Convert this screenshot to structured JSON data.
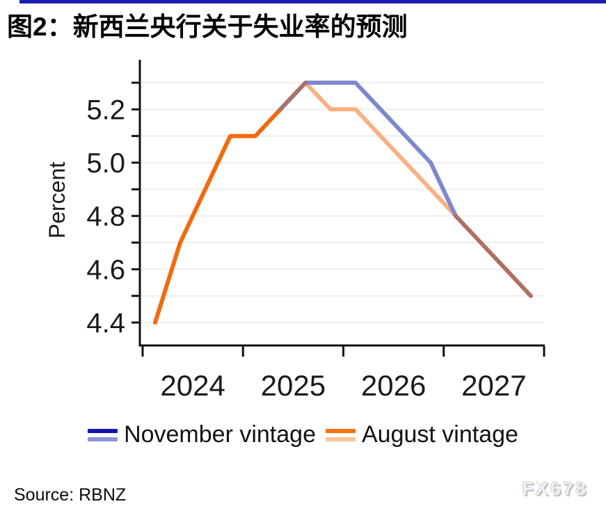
{
  "page": {
    "source": "Source: RBNZ",
    "watermark": "FX678",
    "top_bar_color": "#1e1eb4"
  },
  "chart_data": {
    "type": "line",
    "title": "图2：新西兰央行关于失业率的预测",
    "ylabel": "Percent",
    "ylim": [
      4.35,
      5.38
    ],
    "ytick_labels": [
      "4.4",
      "4.6",
      "4.8",
      "5.0",
      "5.2"
    ],
    "ytick_minor_step": 0.1,
    "ytick_minor_range": [
      4.4,
      5.3
    ],
    "xtick_labels": [
      "2024",
      "2025",
      "2026",
      "2027"
    ],
    "grid": "horizontal-light",
    "legend_position": "bottom",
    "quarters": [
      "2024Q1",
      "2024Q2",
      "2024Q3",
      "2024Q4",
      "2025Q1",
      "2025Q2",
      "2025Q3",
      "2025Q4",
      "2026Q1",
      "2026Q2",
      "2026Q3",
      "2026Q4",
      "2027Q1",
      "2027Q2",
      "2027Q3",
      "2027Q4"
    ],
    "series": [
      {
        "name": "November vintage",
        "color_history": "#1515a8",
        "color_forecast": "#7d88cf",
        "values": [
          null,
          null,
          null,
          null,
          null,
          5.2,
          5.3,
          5.3,
          5.3,
          5.2,
          5.1,
          5.0,
          4.8,
          4.7,
          4.6,
          4.5
        ]
      },
      {
        "name": "August vintage",
        "color_history": "#f26a0e",
        "color_forecast": "#f9b183",
        "values": [
          4.4,
          4.7,
          4.9,
          5.1,
          5.1,
          5.2,
          5.3,
          5.2,
          5.2,
          5.1,
          5.0,
          4.9,
          4.8,
          4.7,
          4.6,
          4.5
        ]
      }
    ],
    "draw_segments": [
      {
        "name": "august-history",
        "color": "#f26a0e",
        "points": [
          [
            0,
            4.4
          ],
          [
            1,
            4.7
          ],
          [
            2,
            4.9
          ],
          [
            3,
            5.1
          ],
          [
            4,
            5.1
          ],
          [
            5,
            5.2
          ]
        ]
      },
      {
        "name": "august-forecast",
        "color": "#f9b183",
        "points": [
          [
            6,
            5.3
          ],
          [
            7,
            5.2
          ],
          [
            8,
            5.2
          ],
          [
            9,
            5.1
          ],
          [
            10,
            5.0
          ],
          [
            11,
            4.9
          ],
          [
            12,
            4.8
          ]
        ]
      },
      {
        "name": "november-forecast",
        "color": "#7d88cf",
        "points": [
          [
            5,
            5.2
          ],
          [
            6,
            5.3
          ],
          [
            7,
            5.3
          ],
          [
            8,
            5.3
          ],
          [
            9,
            5.2
          ],
          [
            10,
            5.1
          ],
          [
            11,
            5.0
          ],
          [
            12,
            4.8
          ]
        ]
      },
      {
        "name": "vintages-overlap",
        "color": "#a8746a",
        "points": [
          [
            5,
            5.2
          ],
          [
            6,
            5.3
          ]
        ]
      },
      {
        "name": "merged-tail",
        "color": "#b06f60",
        "points": [
          [
            12,
            4.8
          ],
          [
            13,
            4.7
          ],
          [
            14,
            4.6
          ],
          [
            15,
            4.5
          ]
        ]
      }
    ],
    "legend": [
      {
        "label": "November vintage",
        "colors": [
          "#1515a8",
          "#8a94d8"
        ]
      },
      {
        "label": "August vintage",
        "colors": [
          "#f8700e",
          "#fbc49c"
        ]
      }
    ]
  }
}
